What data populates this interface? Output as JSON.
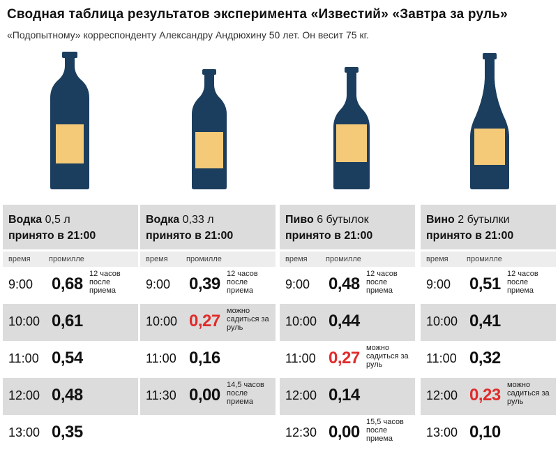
{
  "title": "Сводная таблица результатов эксперимента «Известий» «Завтра за руль»",
  "subtitle": "«Подопытному» корреспонденту Александру Андрюхину 50 лет. Он весит 75 кг.",
  "colors": {
    "bottle": "#1c3e5e",
    "label": "#f4c978",
    "header_bg": "#dcdcdc",
    "highlight": "#e02b2b"
  },
  "sub_headers": {
    "time": "время",
    "promille": "промилле"
  },
  "columns": [
    {
      "name": "Водка",
      "qty": "0,5 л",
      "accepted": "принято в 21:00",
      "rows": [
        {
          "time": "9:00",
          "value": "0,68",
          "note": "12 часов после приема",
          "highlight": false
        },
        {
          "time": "10:00",
          "value": "0,61",
          "note": "",
          "highlight": false
        },
        {
          "time": "11:00",
          "value": "0,54",
          "note": "",
          "highlight": false
        },
        {
          "time": "12:00",
          "value": "0,48",
          "note": "",
          "highlight": false
        },
        {
          "time": "13:00",
          "value": "0,35",
          "note": "",
          "highlight": false
        }
      ]
    },
    {
      "name": "Водка",
      "qty": "0,33 л",
      "accepted": "принято в 21:00",
      "rows": [
        {
          "time": "9:00",
          "value": "0,39",
          "note": "12 часов после приема",
          "highlight": false
        },
        {
          "time": "10:00",
          "value": "0,27",
          "note": "можно садиться за руль",
          "highlight": true
        },
        {
          "time": "11:00",
          "value": "0,16",
          "note": "",
          "highlight": false
        },
        {
          "time": "11:30",
          "value": "0,00",
          "note": "14,5 часов после приема",
          "highlight": false
        }
      ]
    },
    {
      "name": "Пиво",
      "qty": "6 бутылок",
      "accepted": "принято в 21:00",
      "rows": [
        {
          "time": "9:00",
          "value": "0,48",
          "note": "12 часов после приема",
          "highlight": false
        },
        {
          "time": "10:00",
          "value": "0,44",
          "note": "",
          "highlight": false
        },
        {
          "time": "11:00",
          "value": "0,27",
          "note": "можно садиться за руль",
          "highlight": true
        },
        {
          "time": "12:00",
          "value": "0,14",
          "note": "",
          "highlight": false
        },
        {
          "time": "12:30",
          "value": "0,00",
          "note": "15,5 часов после приема",
          "highlight": false
        }
      ]
    },
    {
      "name": "Вино",
      "qty": "2 бутылки",
      "accepted": "принято в 21:00",
      "rows": [
        {
          "time": "9:00",
          "value": "0,51",
          "note": "12 часов после приема",
          "highlight": false
        },
        {
          "time": "10:00",
          "value": "0,41",
          "note": "",
          "highlight": false
        },
        {
          "time": "11:00",
          "value": "0,32",
          "note": "",
          "highlight": false
        },
        {
          "time": "12:00",
          "value": "0,23",
          "note": "можно садиться за руль",
          "highlight": true
        },
        {
          "time": "13:00",
          "value": "0,10",
          "note": "",
          "highlight": false
        }
      ]
    }
  ]
}
